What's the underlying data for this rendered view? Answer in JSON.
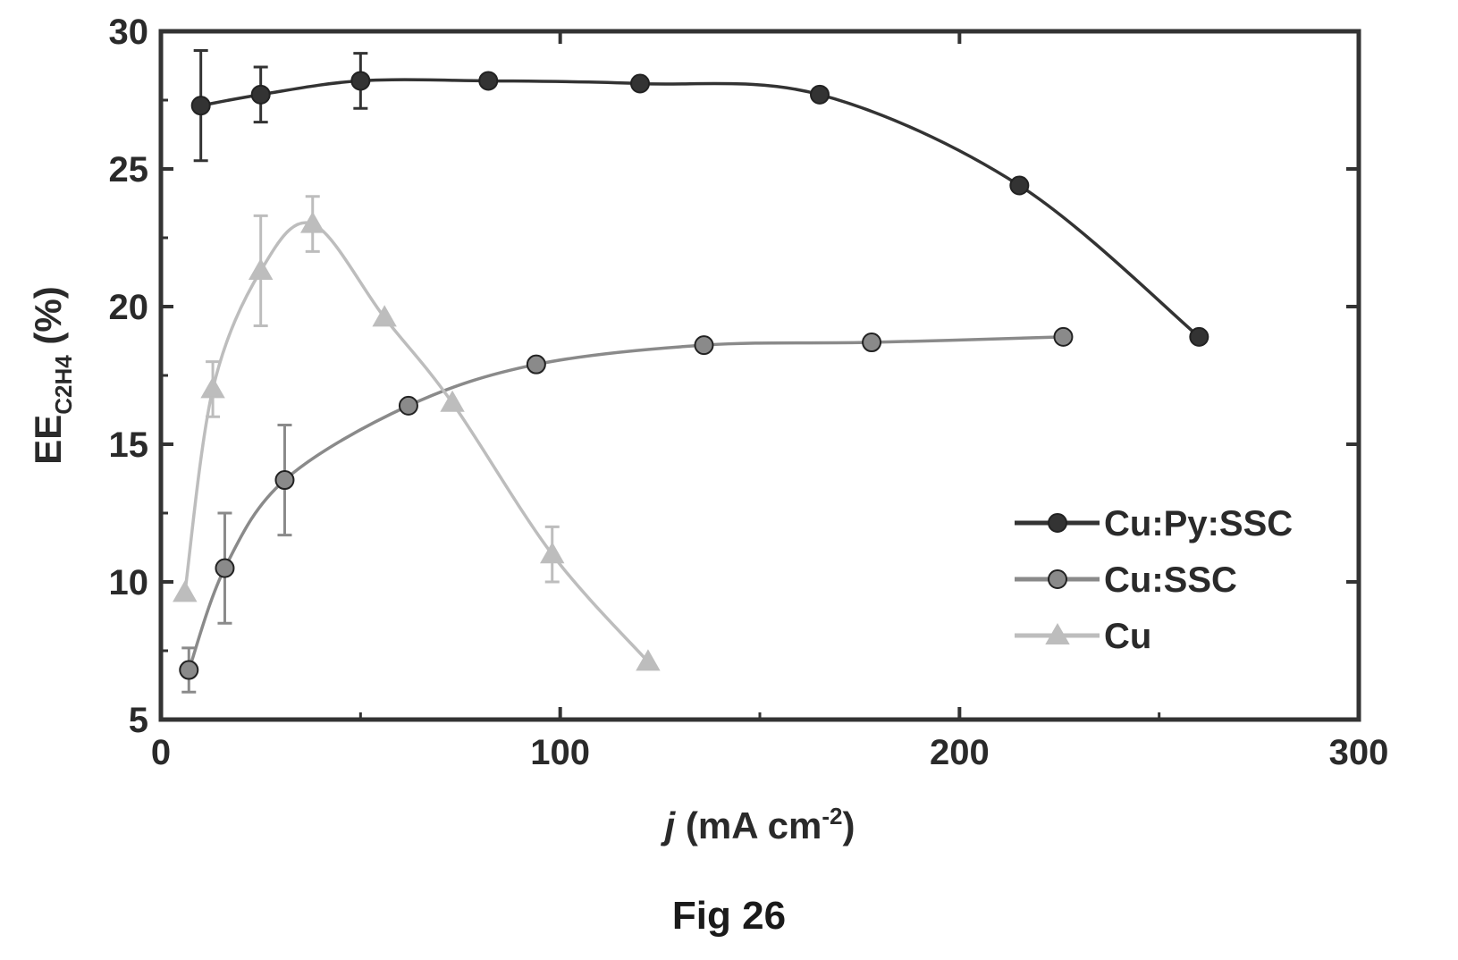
{
  "caption": "Fig 26",
  "chart_data": {
    "type": "line",
    "xlabel_italic": "j",
    "xlabel_rest": " (mA cm",
    "xlabel_sup": "-2",
    "xlabel_end": ")",
    "ylabel_main": "EE",
    "ylabel_sub": "C2H4",
    "ylabel_end": " (%)",
    "xlim": [
      0,
      300
    ],
    "ylim": [
      5,
      30
    ],
    "xticks": [
      0,
      100,
      200,
      300
    ],
    "yticks": [
      5,
      10,
      15,
      20,
      25,
      30
    ],
    "grid": false,
    "legend_position": "right",
    "series": [
      {
        "name": "Cu:Py:SSC",
        "color": "#333333",
        "marker": "circle",
        "x": [
          10,
          25,
          50,
          82,
          120,
          165,
          215,
          260
        ],
        "y": [
          27.3,
          27.7,
          28.2,
          28.2,
          28.1,
          27.7,
          24.4,
          18.9
        ],
        "err": [
          2.0,
          1.0,
          1.0,
          0,
          0,
          0,
          0,
          0
        ]
      },
      {
        "name": "Cu:SSC",
        "color": "#8a8a8a",
        "marker": "circle",
        "x": [
          7,
          16,
          31,
          62,
          94,
          136,
          178,
          226
        ],
        "y": [
          6.8,
          10.5,
          13.7,
          16.4,
          17.9,
          18.6,
          18.7,
          18.9
        ],
        "err": [
          0.8,
          2.0,
          2.0,
          0,
          0,
          0,
          0,
          0
        ]
      },
      {
        "name": "Cu",
        "color": "#bdbdbd",
        "marker": "triangle",
        "x": [
          6,
          13,
          25,
          38,
          56,
          73,
          98,
          122
        ],
        "y": [
          9.6,
          17.0,
          21.3,
          23.0,
          19.6,
          16.5,
          11.0,
          7.1
        ],
        "err": [
          0,
          1.0,
          2.0,
          1.0,
          0,
          0,
          1.0,
          0
        ]
      }
    ]
  }
}
